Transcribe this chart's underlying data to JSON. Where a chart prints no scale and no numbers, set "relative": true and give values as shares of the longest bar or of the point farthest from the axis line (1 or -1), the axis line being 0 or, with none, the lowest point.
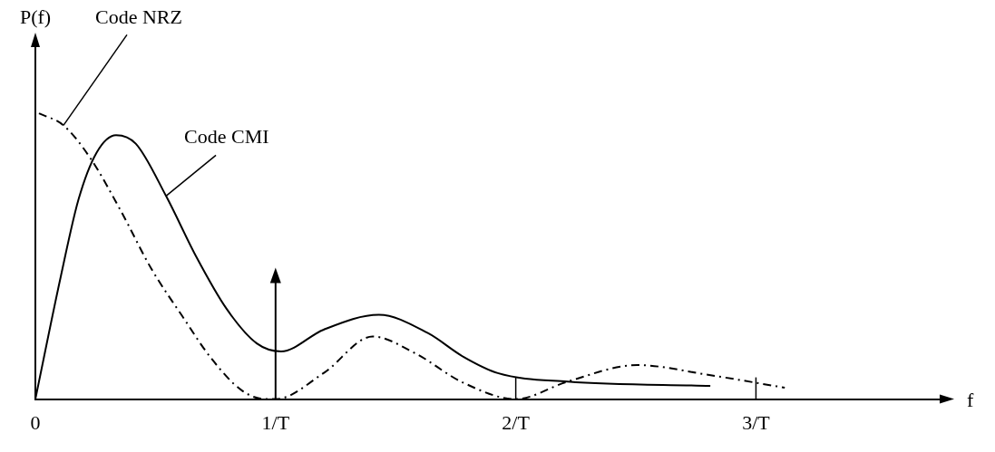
{
  "chart_data": {
    "type": "line",
    "relative": true,
    "xlabel": "f",
    "ylabel": "P(f)",
    "xlim": [
      0,
      3.78
    ],
    "xticks": [
      0,
      {
        "value": 1,
        "label": "1/T"
      },
      {
        "value": 2,
        "label": "2/T"
      },
      {
        "value": 3,
        "label": "3/T"
      }
    ],
    "marker": "none",
    "grid": false,
    "legend": false,
    "series": [
      {
        "name": "Code NRZ",
        "color": "#000000",
        "line_style": "dashed",
        "x": [
          0.015,
          0.117,
          0.23,
          0.355,
          0.483,
          0.608,
          0.732,
          0.86,
          0.96,
          1.0,
          1.2,
          1.404,
          1.58,
          1.78,
          2.0,
          2.215,
          2.506,
          2.8,
          3.12
        ],
        "values": [
          1.0,
          0.958,
          0.842,
          0.66,
          0.456,
          0.295,
          0.143,
          0.03,
          0,
          0,
          0.091,
          0.219,
          0.161,
          0.058,
          0,
          0.061,
          0.119,
          0.085,
          0.04
        ]
      },
      {
        "name": "Code CMI",
        "color": "#000000",
        "line_style": "solid",
        "x": [
          0,
          0.105,
          0.18,
          0.255,
          0.336,
          0.418,
          0.544,
          0.67,
          0.796,
          0.922,
          1.023,
          1.2,
          1.43,
          1.634,
          1.78,
          1.925,
          2.215,
          2.81
        ],
        "values": [
          0,
          0.426,
          0.7,
          0.863,
          0.924,
          0.894,
          0.711,
          0.498,
          0.316,
          0.195,
          0.167,
          0.243,
          0.295,
          0.231,
          0.149,
          0.091,
          0.061,
          0.046
        ]
      }
    ]
  }
}
